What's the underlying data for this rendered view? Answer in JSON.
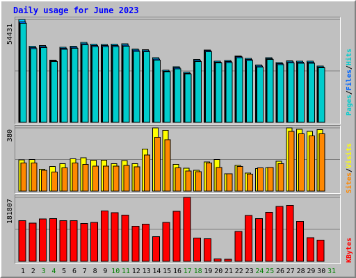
{
  "chart_title": "Daily usage for June 2023",
  "colors": {
    "background": "#c0c0c0",
    "title": "#0000ff",
    "hits": "#00ccff",
    "files": "#0066ff",
    "pages": "#00cccc",
    "visits": "#ffff00",
    "sites": "#ff8800",
    "kbytes": "#ff0000",
    "weekday_label": "#000000",
    "weekend_label": "#008000",
    "separator": "#000000"
  },
  "legend": {
    "top": {
      "pages": "Pages",
      "sep1": "/",
      "files": "Files",
      "sep2": "/",
      "hits": "Hits"
    },
    "middle": {
      "sites": "Sites",
      "sep1": "/",
      "visits": "Visits"
    },
    "bottom": {
      "kbytes": "KBytes"
    }
  },
  "chart_data": [
    {
      "type": "bar",
      "title": "Daily usage for June 2023",
      "x": [
        "1",
        "2",
        "3",
        "4",
        "5",
        "6",
        "7",
        "8",
        "9",
        "10",
        "11",
        "12",
        "13",
        "14",
        "15",
        "16",
        "17",
        "18",
        "19",
        "20",
        "21",
        "22",
        "23",
        "24",
        "25",
        "26",
        "27",
        "28",
        "29",
        "30",
        "31"
      ],
      "weekend_days": [
        "3",
        "4",
        "10",
        "11",
        "17",
        "18",
        "24",
        "25",
        "31"
      ],
      "ymax_label": "54431",
      "ylim": [
        0,
        54431
      ],
      "series": [
        {
          "name": "Hits",
          "values": [
            54431,
            40300,
            40700,
            33000,
            39800,
            40300,
            42300,
            41300,
            41200,
            41300,
            41600,
            38800,
            38500,
            34200,
            27600,
            29500,
            26500,
            33200,
            38300,
            32400,
            32700,
            35200,
            33800,
            30300,
            34200,
            31600,
            32500,
            32300,
            32400,
            29700,
            0
          ]
        },
        {
          "name": "Files",
          "values": [
            53200,
            39600,
            40100,
            32600,
            39200,
            39700,
            41600,
            40600,
            40600,
            40600,
            40900,
            38200,
            37900,
            33500,
            27000,
            28900,
            25900,
            32700,
            37800,
            31900,
            32100,
            34700,
            33300,
            29800,
            33700,
            31100,
            32000,
            31800,
            31800,
            29200,
            0
          ]
        },
        {
          "name": "Pages",
          "values": [
            52400,
            39000,
            39600,
            32100,
            38700,
            39200,
            41000,
            40000,
            40000,
            40000,
            40300,
            37600,
            37400,
            33000,
            26600,
            28400,
            25500,
            32200,
            37300,
            31400,
            31700,
            34200,
            32800,
            29300,
            33200,
            30600,
            31500,
            31300,
            31300,
            28800,
            0
          ]
        }
      ]
    },
    {
      "type": "bar",
      "x": [
        "1",
        "2",
        "3",
        "4",
        "5",
        "6",
        "7",
        "8",
        "9",
        "10",
        "11",
        "12",
        "13",
        "14",
        "15",
        "16",
        "17",
        "18",
        "19",
        "20",
        "21",
        "22",
        "23",
        "24",
        "25",
        "26",
        "27",
        "28",
        "29",
        "30",
        "31"
      ],
      "ymax_label": "380",
      "ylim": [
        0,
        380
      ],
      "series": [
        {
          "name": "Visits",
          "values": [
            188,
            190,
            132,
            148,
            165,
            195,
            200,
            185,
            185,
            165,
            183,
            165,
            252,
            380,
            365,
            160,
            137,
            125,
            175,
            190,
            105,
            155,
            109,
            135,
            140,
            180,
            380,
            372,
            360,
            370,
            0
          ]
        },
        {
          "name": "Sites",
          "values": [
            170,
            170,
            125,
            115,
            140,
            170,
            160,
            150,
            150,
            150,
            155,
            147,
            218,
            323,
            308,
            140,
            122,
            117,
            170,
            142,
            105,
            148,
            102,
            140,
            141,
            165,
            360,
            345,
            333,
            345,
            0
          ]
        }
      ]
    },
    {
      "type": "bar",
      "x": [
        "1",
        "2",
        "3",
        "4",
        "5",
        "6",
        "7",
        "8",
        "9",
        "10",
        "11",
        "12",
        "13",
        "14",
        "15",
        "16",
        "17",
        "18",
        "19",
        "20",
        "21",
        "22",
        "23",
        "24",
        "25",
        "26",
        "27",
        "28",
        "29",
        "30",
        "31"
      ],
      "ymax_label": "181807",
      "ylim": [
        0,
        181807
      ],
      "series": [
        {
          "name": "KBytes",
          "values": [
            115600,
            109000,
            121000,
            122000,
            116000,
            116000,
            108000,
            111000,
            143000,
            138000,
            131000,
            100000,
            105500,
            70000,
            111000,
            142000,
            181807,
            66000,
            64500,
            7000,
            6000,
            85000,
            130000,
            122000,
            139000,
            156000,
            159000,
            114000,
            67500,
            60600,
            0
          ]
        }
      ]
    }
  ]
}
